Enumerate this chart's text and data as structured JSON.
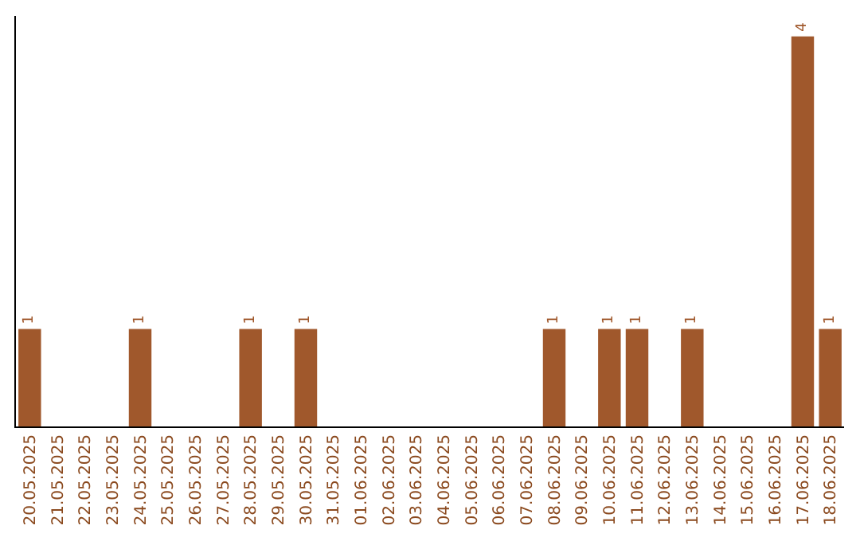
{
  "chart_data": {
    "type": "bar",
    "categories": [
      "20.05.2025",
      "21.05.2025",
      "22.05.2025",
      "23.05.2025",
      "24.05.2025",
      "25.05.2025",
      "26.05.2025",
      "27.05.2025",
      "28.05.2025",
      "29.05.2025",
      "30.05.2025",
      "31.05.2025",
      "01.06.2025",
      "02.06.2025",
      "03.06.2025",
      "04.06.2025",
      "05.06.2025",
      "06.06.2025",
      "07.06.2025",
      "08.06.2025",
      "09.06.2025",
      "10.06.2025",
      "11.06.2025",
      "12.06.2025",
      "13.06.2025",
      "14.06.2025",
      "15.06.2025",
      "16.06.2025",
      "17.06.2025",
      "18.06.2025"
    ],
    "values": [
      1,
      0,
      0,
      0,
      1,
      0,
      0,
      0,
      1,
      0,
      1,
      0,
      0,
      0,
      0,
      0,
      0,
      0,
      0,
      1,
      0,
      1,
      1,
      0,
      1,
      0,
      0,
      0,
      4,
      1
    ],
    "value_labels": [
      "1",
      null,
      null,
      null,
      "1",
      null,
      null,
      null,
      "1",
      null,
      "1",
      null,
      null,
      null,
      null,
      null,
      null,
      null,
      null,
      "1",
      null,
      "1",
      "1",
      null,
      "1",
      null,
      null,
      null,
      "4",
      "1"
    ],
    "color": "#a0582c",
    "grid": false,
    "legend": false
  }
}
